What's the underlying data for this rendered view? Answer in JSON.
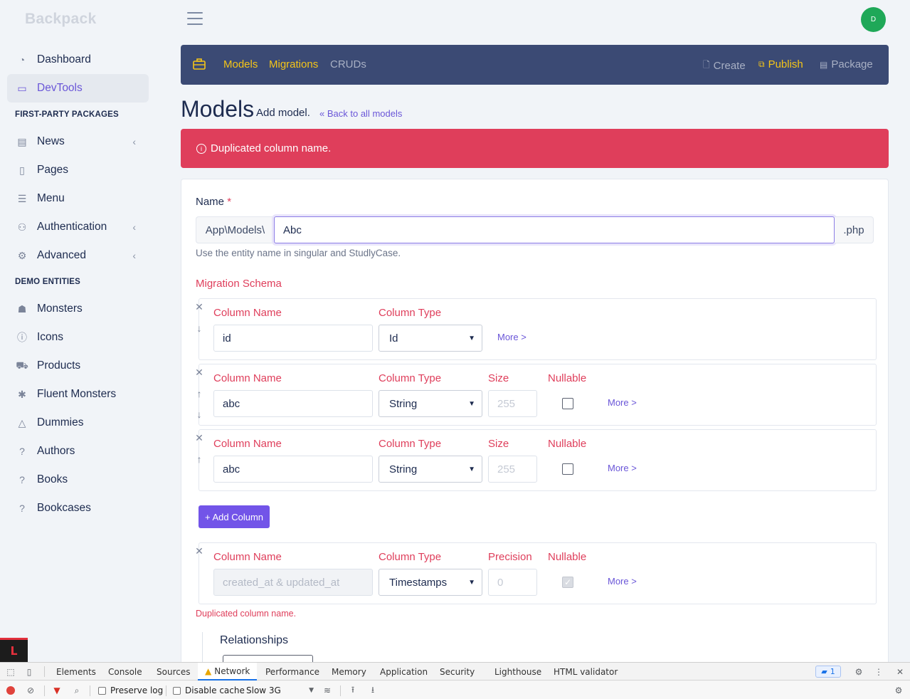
{
  "brand": "Backpack",
  "avatar_initial": "D",
  "sidebar": {
    "items_top": [
      {
        "label": "Dashboard",
        "icon": "gauge-icon"
      },
      {
        "label": "DevTools",
        "icon": "toolbox-icon",
        "active": true
      }
    ],
    "section1": "FIRST-PARTY PACKAGES",
    "items_mid": [
      {
        "label": "News",
        "icon": "newspaper-icon",
        "chevron": "‹"
      },
      {
        "label": "Pages",
        "icon": "file-icon"
      },
      {
        "label": "Menu",
        "icon": "list-icon"
      },
      {
        "label": "Authentication",
        "icon": "users-icon",
        "chevron": "‹"
      },
      {
        "label": "Advanced",
        "icon": "cogs-icon",
        "chevron": "‹"
      }
    ],
    "section2": "DEMO ENTITIES",
    "items_demo": [
      {
        "label": "Monsters",
        "icon": "monster-icon"
      },
      {
        "label": "Icons",
        "icon": "info-icon"
      },
      {
        "label": "Products",
        "icon": "cart-icon"
      },
      {
        "label": "Fluent Monsters",
        "icon": "spider-icon"
      },
      {
        "label": "Dummies",
        "icon": "poo-icon"
      },
      {
        "label": "Authors",
        "icon": "question-icon"
      },
      {
        "label": "Books",
        "icon": "question-icon"
      },
      {
        "label": "Bookcases",
        "icon": "question-icon"
      }
    ]
  },
  "devtools_bar": {
    "tabs": [
      "Models",
      "Migrations",
      "CRUDs"
    ],
    "actions": [
      "Create",
      "Publish",
      "Package"
    ]
  },
  "page": {
    "title": "Models",
    "subtitle": "Add model.",
    "back_link": "Back to all models",
    "alert": "Duplicated column name."
  },
  "form": {
    "name_label": "Name",
    "required_mark": "*",
    "prefix": "App\\Models\\",
    "name_value": "Abc",
    "suffix": ".php",
    "help": "Use the entity name in singular and StudlyCase.",
    "migration_title": "Migration Schema",
    "col_name_label": "Column Name",
    "col_type_label": "Column Type",
    "size_label": "Size",
    "nullable_label": "Nullable",
    "precision_label": "Precision",
    "more": "More >",
    "rows": [
      {
        "name": "id",
        "type": "Id"
      },
      {
        "name": "abc",
        "type": "String",
        "size_placeholder": "255"
      },
      {
        "name": "abc",
        "type": "String",
        "size_placeholder": "255"
      }
    ],
    "add_column": "+ Add Column",
    "timestamps": {
      "name": "created_at & updated_at",
      "type": "Timestamps",
      "precision_placeholder": "0"
    },
    "dup_error": "Duplicated column name.",
    "relationships": "Relationships"
  },
  "chrome_devtools": {
    "tabs": [
      "Elements",
      "Console",
      "Sources",
      "Network",
      "Performance",
      "Memory",
      "Application",
      "Security",
      "Lighthouse",
      "HTML validator"
    ],
    "issues_count": "1",
    "preserve_log": "Preserve log",
    "disable_cache": "Disable cache",
    "throttle": "Slow 3G"
  }
}
